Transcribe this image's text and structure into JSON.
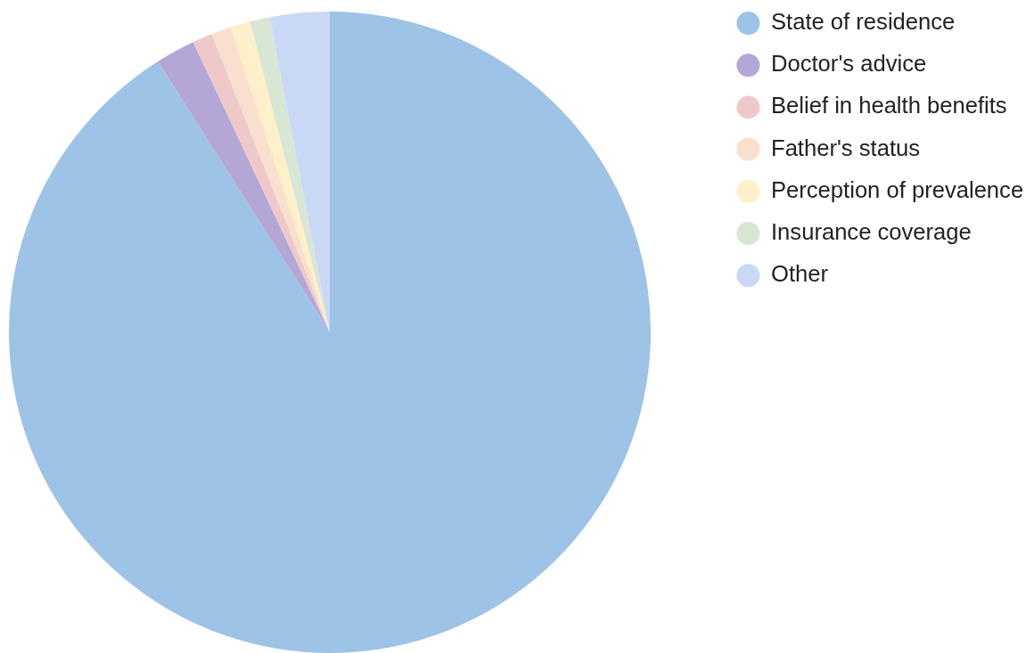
{
  "chart_data": {
    "type": "pie",
    "categories": [
      "State of residence",
      "Doctor's advice",
      "Belief in health benefits",
      "Father's status",
      "Perception of prevalence",
      "Insurance coverage",
      "Other"
    ],
    "values": [
      91,
      2,
      1,
      1,
      1,
      1,
      3
    ],
    "colors": [
      "#9dc3e6",
      "#b4a7d6",
      "#efc9ca",
      "#f9dfcd",
      "#fff0c9",
      "#d8e6d4",
      "#c9d8f5"
    ],
    "legend": "top right"
  }
}
